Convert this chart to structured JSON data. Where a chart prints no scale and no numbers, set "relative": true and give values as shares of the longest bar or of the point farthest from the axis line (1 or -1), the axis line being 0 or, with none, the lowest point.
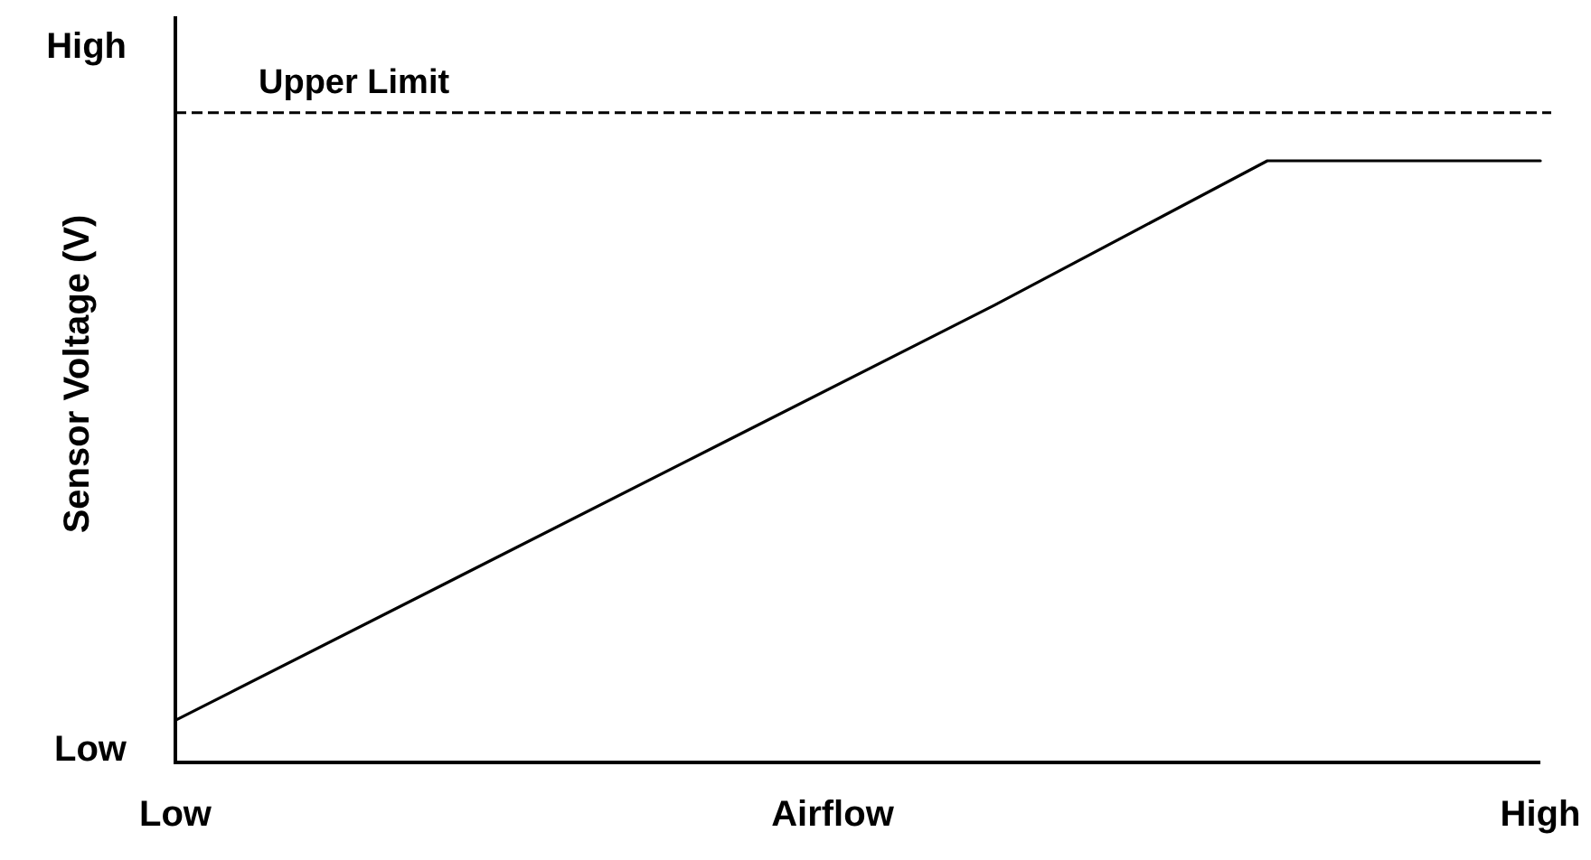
{
  "chart_data": {
    "type": "line",
    "relative": true,
    "xlabel": "Airflow",
    "ylabel": "Sensor Voltage (V)",
    "categories": [
      "Low",
      null,
      null,
      null,
      null,
      "High"
    ],
    "values": [
      0.07,
      0.3,
      0.53,
      0.76,
      1,
      1
    ],
    "color": "#000000",
    "line_style": "solid",
    "ref_lines": [
      {
        "axis": "y",
        "value": 1.08,
        "label": "Upper Limit",
        "color": "#000000",
        "line_style": "dashed"
      }
    ],
    "annotations": [
      "High",
      "Low"
    ]
  }
}
